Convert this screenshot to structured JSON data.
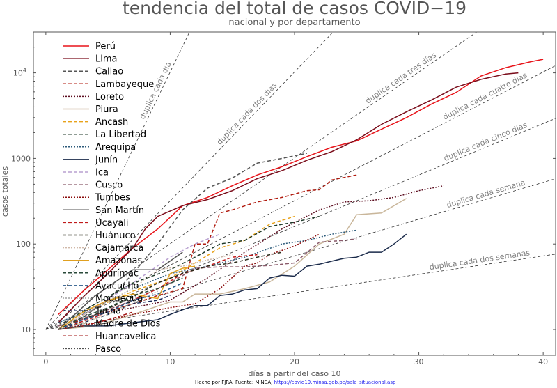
{
  "chart_data": {
    "type": "line",
    "title": "tendencia del total de casos COVID−19",
    "subtitle": "nacional y por departamento",
    "xlabel": "días a partir del caso 10",
    "ylabel": "casos totales",
    "xlim": [
      -1,
      41
    ],
    "ylim": [
      5,
      30000
    ],
    "yscale": "log",
    "xticks": [
      0,
      10,
      20,
      30,
      40
    ],
    "yticks": [
      {
        "value": 10,
        "label": "10"
      },
      {
        "value": 100,
        "label": "100"
      },
      {
        "value": 1000,
        "label": "1000"
      },
      {
        "value": 10000,
        "label": "10",
        "sup": "4"
      }
    ],
    "grid": false,
    "legend_position": "top-left",
    "reference_lines": [
      {
        "label": "duplica cada día",
        "doubling_days": 1
      },
      {
        "label": "duplica cada dos días",
        "doubling_days": 2
      },
      {
        "label": "duplica cada tres días",
        "doubling_days": 3
      },
      {
        "label": "duplica cada cuatro días",
        "doubling_days": 4
      },
      {
        "label": "duplica cada cinco días",
        "doubling_days": 5
      },
      {
        "label": "duplica cada semana",
        "doubling_days": 7
      },
      {
        "label": "duplica cada dos semanas",
        "doubling_days": 14
      }
    ],
    "series": [
      {
        "name": "Perú",
        "color": "#e8141a",
        "dash": "solid",
        "x": [
          1,
          3,
          5,
          7,
          9,
          11,
          13,
          15,
          17,
          19,
          21,
          23,
          25,
          27,
          29,
          31,
          33,
          35,
          37,
          39,
          40
        ],
        "y": [
          15,
          28,
          50,
          90,
          150,
          280,
          350,
          480,
          640,
          800,
          1050,
          1350,
          1600,
          2200,
          3000,
          4300,
          5900,
          9200,
          11500,
          13500,
          14400
        ]
      },
      {
        "name": "Lima",
        "color": "#7a0c1a",
        "dash": "solid",
        "x": [
          1,
          3,
          5,
          7,
          8,
          9,
          11,
          13,
          15,
          17,
          19,
          21,
          23,
          25,
          27,
          29,
          31,
          33,
          35,
          37,
          38
        ],
        "y": [
          12,
          24,
          45,
          90,
          150,
          210,
          280,
          330,
          420,
          580,
          720,
          950,
          1200,
          1650,
          2500,
          3500,
          4800,
          6800,
          8400,
          9700,
          10000
        ]
      },
      {
        "name": "Callao",
        "color": "#555555",
        "dash": "5,3",
        "x": [
          1,
          3,
          5,
          7,
          9,
          11,
          13,
          15,
          17,
          19,
          21
        ],
        "y": [
          11,
          14,
          22,
          45,
          100,
          250,
          450,
          590,
          880,
          1000,
          1150
        ]
      },
      {
        "name": "Lambayeque",
        "color": "#b01a0e",
        "dash": "5,3",
        "x": [
          1,
          3,
          5,
          7,
          9,
          11,
          12,
          13,
          14,
          15,
          17,
          19,
          21,
          22,
          23,
          25
        ],
        "y": [
          11,
          13,
          16,
          20,
          25,
          30,
          100,
          100,
          230,
          250,
          310,
          350,
          420,
          430,
          560,
          640
        ]
      },
      {
        "name": "Loreto",
        "color": "#5c0e20",
        "dash": "2,2",
        "x": [
          1,
          4,
          7,
          10,
          13,
          16,
          19,
          22,
          24,
          26,
          28,
          30,
          32
        ],
        "y": [
          10,
          15,
          18,
          22,
          40,
          80,
          150,
          250,
          310,
          320,
          350,
          420,
          480
        ]
      },
      {
        "name": "Piura",
        "color": "#c9b69a",
        "dash": "solid",
        "x": [
          1,
          4,
          7,
          10,
          11,
          12,
          14,
          16,
          18,
          20,
          22,
          24,
          25,
          27,
          29
        ],
        "y": [
          10,
          11,
          15,
          21,
          21,
          26,
          26,
          30,
          36,
          55,
          100,
          130,
          220,
          230,
          340
        ]
      },
      {
        "name": "Ancash",
        "color": "#e8a21a",
        "dash": "5,3",
        "x": [
          1,
          4,
          7,
          10,
          12,
          14,
          16,
          18,
          20
        ],
        "y": [
          10,
          18,
          28,
          40,
          60,
          90,
          110,
          170,
          210
        ]
      },
      {
        "name": "La Libertad",
        "color": "#1f3a2a",
        "dash": "5,3",
        "x": [
          1,
          4,
          7,
          10,
          12,
          14,
          16,
          18,
          20,
          22
        ],
        "y": [
          11,
          20,
          35,
          50,
          70,
          100,
          110,
          160,
          180,
          210
        ]
      },
      {
        "name": "Arequipa",
        "color": "#2c5a7a",
        "dash": "2,2",
        "x": [
          1,
          4,
          7,
          10,
          13,
          16,
          19,
          21,
          23,
          25
        ],
        "y": [
          12,
          18,
          30,
          45,
          55,
          70,
          100,
          110,
          130,
          145
        ]
      },
      {
        "name": "Junín",
        "color": "#1a2a4a",
        "dash": "solid",
        "x": [
          1,
          3,
          5,
          7,
          9,
          10,
          11,
          12,
          13,
          14,
          15,
          16,
          17,
          18,
          19,
          20,
          21,
          22,
          23,
          24,
          25,
          26,
          27,
          28,
          29
        ],
        "y": [
          10,
          11,
          11,
          12,
          13,
          15,
          17,
          19,
          19,
          25,
          26,
          29,
          30,
          40,
          43,
          42,
          55,
          58,
          63,
          68,
          70,
          80,
          80,
          100,
          130
        ]
      },
      {
        "name": "Ica",
        "color": "#b8a0d0",
        "dash": "5,3",
        "x": [
          1,
          4,
          7,
          10,
          12,
          14
        ],
        "y": [
          10,
          18,
          35,
          70,
          100,
          130
        ]
      },
      {
        "name": "Cusco",
        "color": "#8a5a6a",
        "dash": "5,3",
        "x": [
          1,
          4,
          7,
          10,
          12,
          14,
          16,
          18,
          20,
          22,
          24,
          25
        ],
        "y": [
          11,
          15,
          22,
          35,
          52,
          54,
          54,
          56,
          60,
          105,
          110,
          115
        ]
      },
      {
        "name": "Tumbes",
        "color": "#8a0c0c",
        "dash": "2,2",
        "x": [
          1,
          4,
          7,
          10,
          12,
          14,
          16,
          17,
          18,
          20,
          22
        ],
        "y": [
          10,
          12,
          15,
          18,
          20,
          30,
          55,
          60,
          75,
          95,
          130
        ]
      },
      {
        "name": "San Martín",
        "color": "#505050",
        "dash": "solid",
        "x": [
          1,
          4,
          7,
          9,
          11
        ],
        "y": [
          10,
          25,
          50,
          50,
          80
        ]
      },
      {
        "name": "Ucayali",
        "color": "#c01a1a",
        "dash": "5,3",
        "x": [
          1,
          4,
          7,
          9,
          11,
          13,
          15,
          17
        ],
        "y": [
          10,
          14,
          22,
          30,
          45,
          55,
          70,
          75
        ]
      },
      {
        "name": "Huánuco",
        "color": "#2a2a1a",
        "dash": "5,3",
        "x": [
          1,
          4,
          7,
          9,
          11,
          13,
          15,
          17,
          19
        ],
        "y": [
          10,
          15,
          24,
          35,
          45,
          55,
          60,
          70,
          80
        ]
      },
      {
        "name": "Cajamarca",
        "color": "#d0b8a8",
        "dash": "2,2",
        "x": [
          1,
          4,
          7,
          9,
          11,
          13,
          15
        ],
        "y": [
          10,
          18,
          30,
          50,
          55,
          65,
          75
        ]
      },
      {
        "name": "Amazonas",
        "color": "#e0a020",
        "dash": "solid",
        "x": [
          1,
          3,
          5,
          7,
          9,
          10,
          11,
          12
        ],
        "y": [
          10,
          16,
          22,
          26,
          23,
          45,
          52,
          55
        ]
      },
      {
        "name": "Apurímac",
        "color": "#2a4a3a",
        "dash": "5,3",
        "x": [
          1,
          3,
          5,
          7,
          9,
          11
        ],
        "y": [
          10,
          14,
          18,
          25,
          30,
          40
        ]
      },
      {
        "name": "Ayacucho",
        "color": "#2a5a8a",
        "dash": "5,3",
        "x": [
          1,
          3,
          5,
          7,
          9,
          11
        ],
        "y": [
          10,
          13,
          16,
          22,
          26,
          35
        ]
      },
      {
        "name": "Moquegua",
        "color": "#a0a0a0",
        "dash": "2,2",
        "x": [
          1,
          3,
          5,
          7,
          9
        ],
        "y": [
          10,
          12,
          15,
          20,
          28
        ]
      },
      {
        "name": "Tacna",
        "color": "#1a2a5a",
        "dash": "5,3",
        "x": [
          1,
          3,
          5,
          7,
          9,
          10
        ],
        "y": [
          10,
          12,
          15,
          20,
          22,
          25
        ]
      },
      {
        "name": "Madre de Dios",
        "color": "#d0c0a0",
        "dash": "2,2",
        "x": [
          1,
          3,
          5,
          7
        ],
        "y": [
          10,
          12,
          15,
          20
        ]
      },
      {
        "name": "Huancavelica",
        "color": "#a01010",
        "dash": "5,3",
        "x": [
          1,
          3,
          5,
          7
        ],
        "y": [
          10,
          11,
          13,
          16
        ]
      },
      {
        "name": "Pasco",
        "color": "#505050",
        "dash": "2,2",
        "x": [
          1,
          3,
          5
        ],
        "y": [
          10,
          11,
          12
        ]
      }
    ]
  },
  "footer": {
    "text": "Hecho por FJRA. Fuente: MINSA, ",
    "link": "https://covid19.minsa.gob.pe/sala_situacional.asp"
  }
}
